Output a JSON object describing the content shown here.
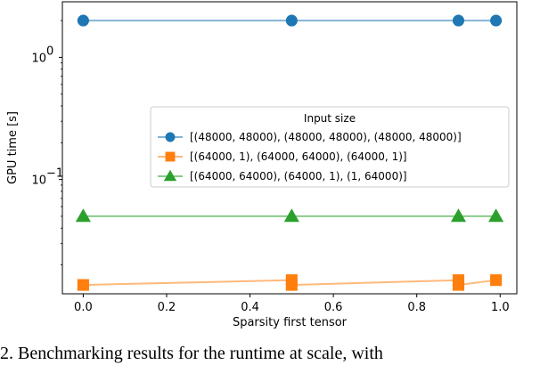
{
  "chart_data": {
    "type": "line",
    "xlabel": "Sparsity first tensor",
    "ylabel": "GPU time [s]",
    "yscale": "log",
    "xlim": [
      -0.05,
      1.04
    ],
    "ylim": [
      0.0116,
      2.85
    ],
    "xticks": [
      0.0,
      0.2,
      0.4,
      0.6,
      0.8,
      1.0
    ],
    "xtick_labels": [
      "0.0",
      "0.2",
      "0.4",
      "0.6",
      "0.8",
      "1.0"
    ],
    "ytick_labels": {
      "one": "10",
      "one_exp": "0",
      "tenth": "10",
      "tenth_exp": "−1"
    },
    "legend": {
      "title": "Input size",
      "placement": "center-right"
    },
    "grid": false,
    "series": [
      {
        "name": "[(48000, 48000), (48000, 48000), (48000, 48000)]",
        "color": "#1f77b4",
        "marker": "circle",
        "x": [
          0.0,
          0.5,
          0.9,
          0.99
        ],
        "y": [
          2.0,
          2.0,
          2.0,
          2.0
        ]
      },
      {
        "name": "[(64000, 1), (64000, 64000), (64000, 1)]",
        "color": "#ff7f0e",
        "marker": "square",
        "x": [
          0.0,
          0.5,
          0.5,
          0.9,
          0.9,
          0.99
        ],
        "y": [
          0.0137,
          0.015,
          0.0137,
          0.015,
          0.0137,
          0.015
        ]
      },
      {
        "name": "[(64000, 64000), (64000, 1), (1, 64000)]",
        "color": "#2ca02c",
        "marker": "triangle",
        "x": [
          0.0,
          0.5,
          0.9,
          0.99
        ],
        "y": [
          0.05,
          0.05,
          0.05,
          0.05
        ]
      }
    ]
  },
  "caption": "2.  Benchmarking results for the runtime at scale, with"
}
